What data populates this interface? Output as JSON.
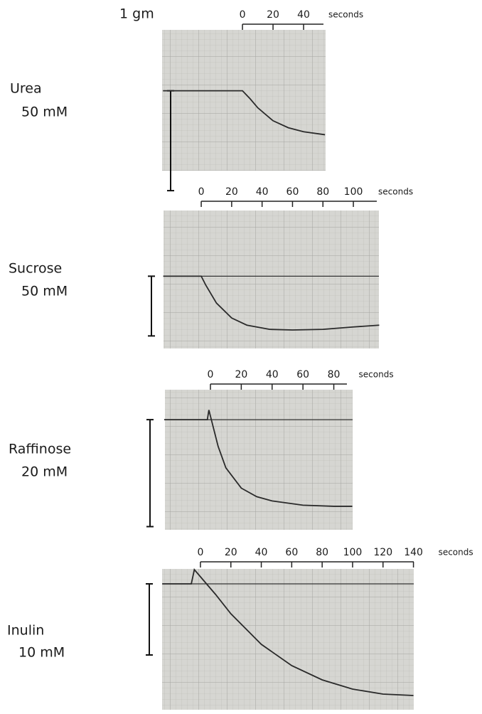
{
  "chart_data": [
    {
      "type": "line",
      "title": "Urea",
      "subtitle": "50 mM",
      "scale_label": "1 gm",
      "xlabel": "seconds",
      "xlim": [
        -52.6,
        54.4
      ],
      "ylim": [
        -0.8,
        0.61
      ],
      "xticks": [
        0,
        20,
        40
      ],
      "reference_line": false,
      "x": [
        -52,
        0,
        5,
        10,
        20,
        30,
        40,
        54
      ],
      "series": [
        {
          "color": "#2a2a2a",
          "values": [
            0,
            0,
            -0.08,
            -0.17,
            -0.3,
            -0.37,
            -0.41,
            -0.44
          ]
        }
      ]
    },
    {
      "type": "line",
      "title": "Sucrose",
      "subtitle": "50 mM",
      "xlabel": "seconds",
      "xlim": [
        -24.8,
        116.8
      ],
      "ylim": [
        -1.21,
        1.1
      ],
      "xticks": [
        0,
        20,
        40,
        60,
        80,
        100
      ],
      "reference_line": true,
      "x": [
        -25,
        0,
        3,
        10,
        20,
        30,
        45,
        60,
        80,
        100,
        117
      ],
      "series": [
        {
          "color": "#2a2a2a",
          "values": [
            0,
            0,
            -0.15,
            -0.45,
            -0.7,
            -0.82,
            -0.89,
            -0.9,
            -0.89,
            -0.85,
            -0.82
          ]
        }
      ]
    },
    {
      "type": "line",
      "title": "Raffinose",
      "subtitle": "20 mM",
      "xlabel": "seconds",
      "xlim": [
        -29.5,
        92.2
      ],
      "ylim": [
        -1.03,
        0.28
      ],
      "xticks": [
        0,
        20,
        40,
        60,
        80
      ],
      "reference_line": true,
      "x": [
        -30,
        -2,
        -1,
        5,
        10,
        20,
        30,
        40,
        60,
        80,
        92
      ],
      "series": [
        {
          "color": "#2a2a2a",
          "values": [
            0,
            0,
            0.09,
            -0.25,
            -0.45,
            -0.64,
            -0.72,
            -0.76,
            -0.8,
            -0.81,
            -0.81
          ]
        }
      ]
    },
    {
      "type": "line",
      "title": "Inulin",
      "subtitle": "10 mM",
      "xlabel": "seconds",
      "xlim": [
        -25.2,
        140.2
      ],
      "ylim": [
        -1.77,
        0.21
      ],
      "xticks": [
        0,
        20,
        40,
        60,
        80,
        100,
        120,
        140
      ],
      "reference_line": true,
      "x": [
        -25,
        -6,
        -4,
        10,
        20,
        40,
        60,
        80,
        100,
        120,
        140
      ],
      "series": [
        {
          "color": "#2a2a2a",
          "values": [
            0,
            0,
            0.2,
            -0.15,
            -0.42,
            -0.85,
            -1.15,
            -1.35,
            -1.48,
            -1.55,
            -1.57
          ]
        }
      ]
    }
  ]
}
